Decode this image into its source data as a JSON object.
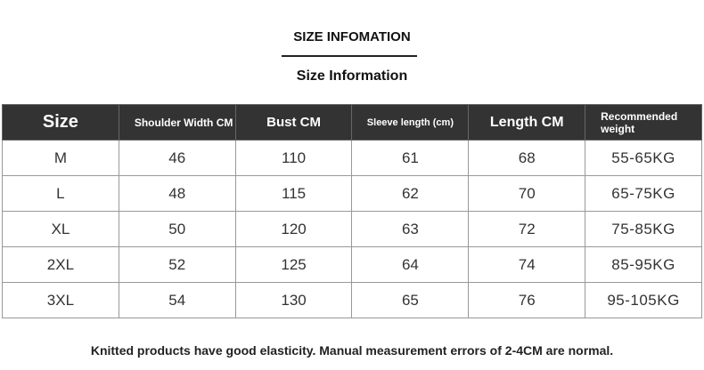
{
  "header": {
    "title": "SIZE INFOMATION",
    "subtitle": "Size Information"
  },
  "table": {
    "columns": [
      "Size",
      "Shoulder Width CM",
      "Bust CM",
      "Sleeve length (cm)",
      "Length CM",
      "Recommended weight"
    ],
    "rows": [
      [
        "M",
        46,
        110,
        61,
        68,
        "55-65KG"
      ],
      [
        "L",
        48,
        115,
        62,
        70,
        "65-75KG"
      ],
      [
        "XL",
        50,
        120,
        63,
        72,
        "75-85KG"
      ],
      [
        "2XL",
        52,
        125,
        64,
        74,
        "85-95KG"
      ],
      [
        "3XL",
        54,
        130,
        65,
        76,
        "95-105KG"
      ]
    ]
  },
  "footer": {
    "note": "Knitted products have good elasticity. Manual measurement errors of 2-4CM are normal."
  }
}
